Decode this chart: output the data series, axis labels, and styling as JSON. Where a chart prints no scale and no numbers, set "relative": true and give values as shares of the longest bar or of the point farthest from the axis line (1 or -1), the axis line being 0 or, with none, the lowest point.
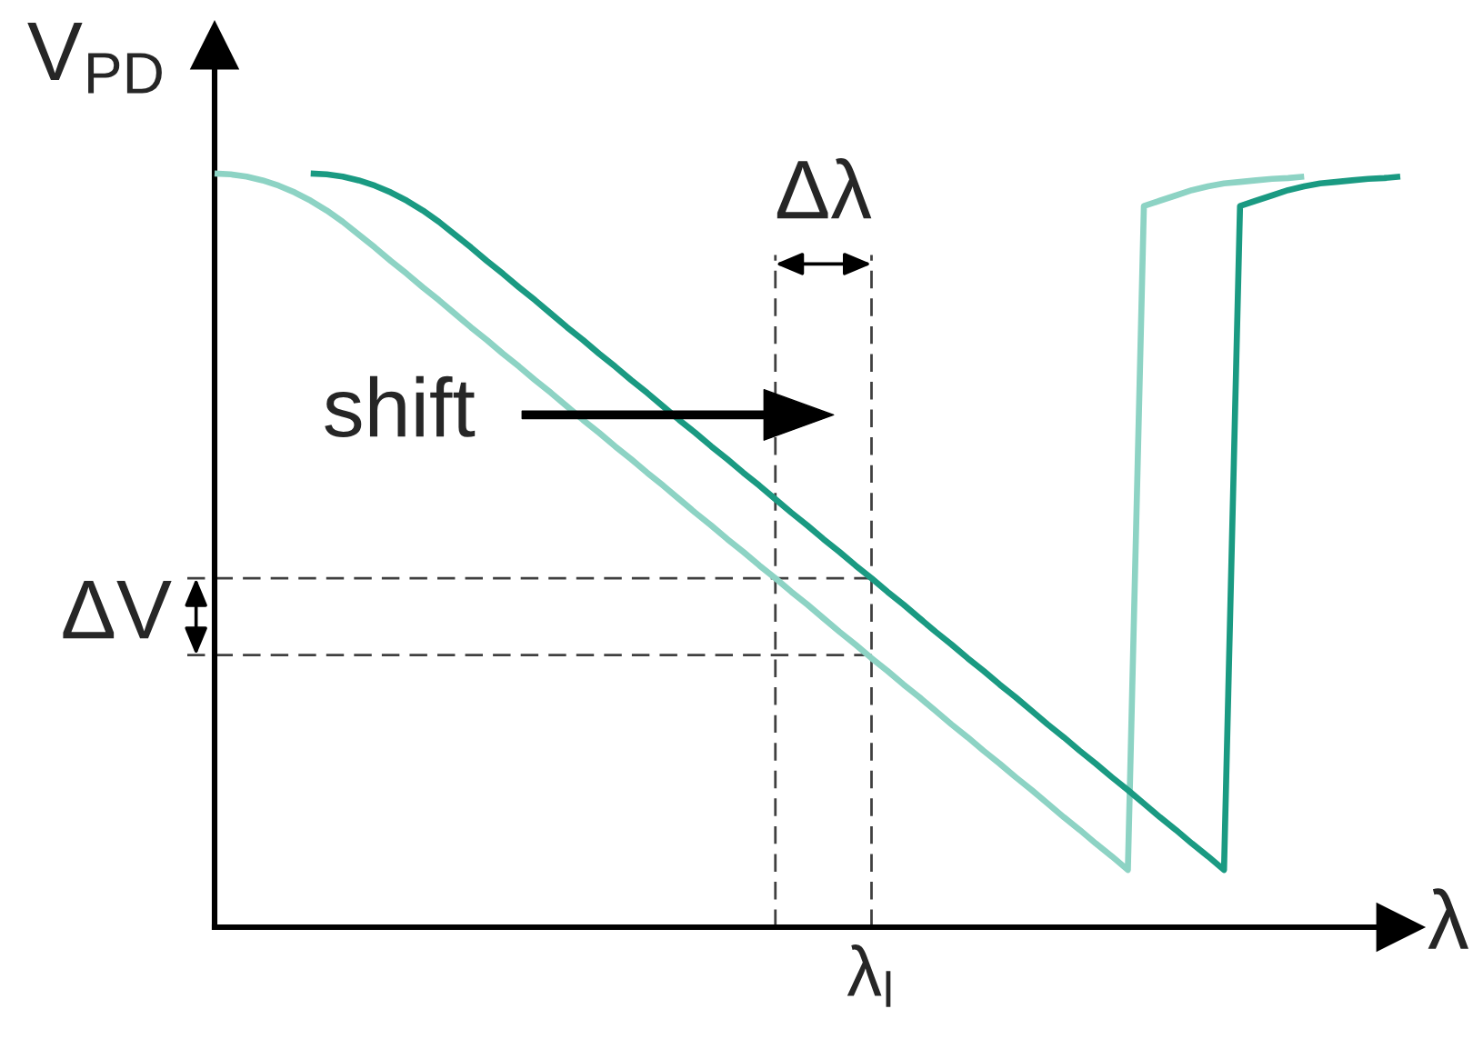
{
  "chart_data": {
    "type": "line",
    "ylabel": "V$_{PD}$",
    "xlabel": "λ",
    "relative": true,
    "categories": [
      null,
      null,
      null,
      null,
      null,
      null,
      null,
      null,
      null,
      null,
      null,
      null,
      null,
      null,
      null,
      null,
      null,
      null,
      null,
      null,
      null,
      null,
      null,
      null,
      null,
      null,
      null,
      null,
      null,
      null,
      null,
      null,
      null,
      null,
      null,
      null,
      null,
      null,
      null,
      null,
      null,
      null,
      null,
      null,
      null,
      null,
      null,
      null,
      null,
      null,
      null,
      null,
      null,
      null,
      null,
      null,
      null,
      null,
      null,
      null,
      null,
      null,
      null,
      null,
      null,
      null,
      null,
      null,
      null,
      null,
      null,
      null,
      null,
      null,
      null
    ],
    "series": [
      {
        "color": "#8dd3c4",
        "values": [
          1.0,
          0.999,
          0.996,
          0.991,
          0.984,
          0.975,
          0.964,
          0.951,
          0.936,
          0.919,
          0.902,
          0.884,
          0.867,
          0.849,
          0.832,
          0.814,
          0.796,
          0.779,
          0.761,
          0.744,
          0.726,
          0.709,
          0.691,
          0.673,
          0.656,
          0.638,
          0.621,
          0.603,
          0.586,
          0.568,
          0.55,
          0.533,
          0.515,
          0.498,
          0.48,
          0.463,
          0.445,
          0.428,
          0.41,
          0.392,
          0.375,
          0.357,
          0.34,
          0.322,
          0.305,
          0.287,
          0.269,
          0.252,
          0.234,
          0.217,
          0.199,
          0.182,
          0.164,
          0.146,
          0.129,
          0.111,
          0.094,
          0.076,
          0.957,
          0.964,
          0.971,
          0.978,
          0.983,
          0.987,
          0.989,
          0.991,
          0.993,
          0.994,
          0.996,
          null,
          null,
          null,
          null,
          null,
          null
        ]
      },
      {
        "color": "#1a9a82",
        "values": [
          null,
          null,
          null,
          null,
          null,
          null,
          1.0,
          0.999,
          0.996,
          0.991,
          0.984,
          0.975,
          0.964,
          0.951,
          0.936,
          0.919,
          0.902,
          0.884,
          0.867,
          0.849,
          0.832,
          0.814,
          0.796,
          0.779,
          0.761,
          0.744,
          0.726,
          0.709,
          0.691,
          0.673,
          0.656,
          0.638,
          0.621,
          0.603,
          0.586,
          0.568,
          0.55,
          0.533,
          0.515,
          0.498,
          0.48,
          0.463,
          0.445,
          0.428,
          0.41,
          0.392,
          0.375,
          0.357,
          0.34,
          0.322,
          0.305,
          0.287,
          0.269,
          0.252,
          0.234,
          0.217,
          0.199,
          0.182,
          0.164,
          0.146,
          0.129,
          0.111,
          0.094,
          0.076,
          0.957,
          0.964,
          0.971,
          0.978,
          0.983,
          0.987,
          0.989,
          0.991,
          0.993,
          0.994,
          0.996
        ]
      }
    ],
    "ref_lines": [
      {
        "axis": "y",
        "value": 0.463,
        "color": "#404040",
        "line_style": "dashed"
      },
      {
        "axis": "y",
        "value": 0.361,
        "color": "#404040",
        "line_style": "dashed"
      }
    ],
    "annotations": [
      "Δλ",
      "ΔV",
      "shift",
      "λ$_{l}$"
    ]
  }
}
